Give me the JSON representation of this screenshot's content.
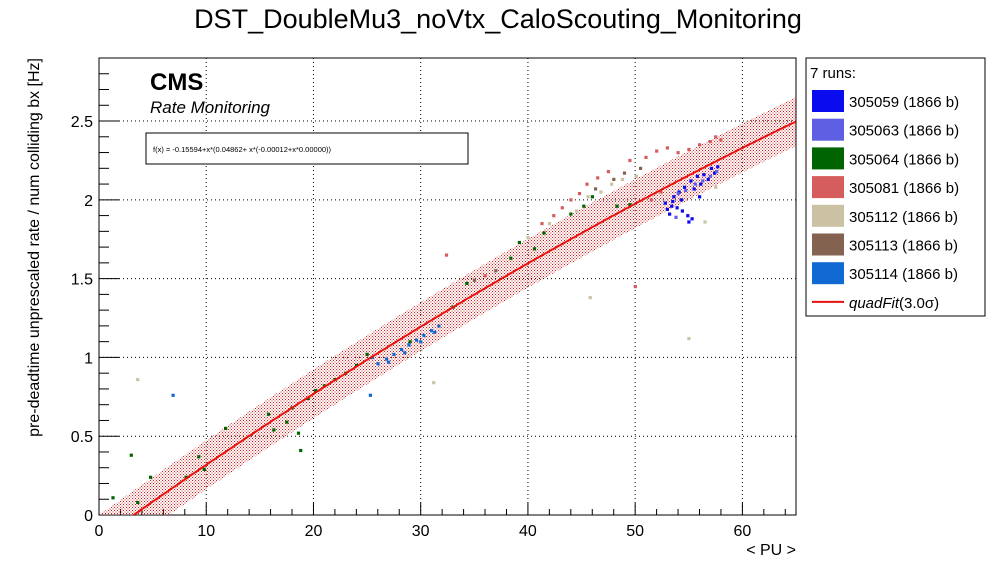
{
  "chart_data": {
    "type": "scatter",
    "title": "DST_DoubleMu3_noVtx_CaloScouting_Monitoring",
    "xlabel": "< PU >",
    "ylabel": "pre-deadtime unprescaled rate / num colliding bx [Hz]",
    "xlim": [
      0,
      65
    ],
    "ylim": [
      0,
      2.9
    ],
    "xticks": [
      "0",
      "10",
      "20",
      "30",
      "40",
      "50",
      "60"
    ],
    "yticks": [
      "0",
      "0.5",
      "1",
      "1.5",
      "2",
      "2.5"
    ],
    "grid": true,
    "cms_label": "CMS",
    "cms_sublabel": "Rate Monitoring",
    "fit_formula": "f(x) = -0.15594+x*(0.04862+ x*(-0.00012+x*0.00000))",
    "fit": {
      "name": "quadFit(3.0σ)",
      "a": -0.15594,
      "b": 0.04862,
      "c": -0.00012,
      "band": 0.155,
      "color": "#e8120e"
    },
    "legend_header": "7 runs:",
    "legend_position": "right",
    "series": [
      {
        "name": "305059 (1866 b)",
        "color": "#0b0bf0",
        "points": [
          [
            52.8,
            1.98
          ],
          [
            53.0,
            1.94
          ],
          [
            53.2,
            1.91
          ],
          [
            53.4,
            1.96
          ],
          [
            53.6,
            2.02
          ],
          [
            53.9,
            1.95
          ],
          [
            54.1,
            2.05
          ],
          [
            54.3,
            2.0
          ],
          [
            54.6,
            2.08
          ],
          [
            54.9,
            1.9
          ],
          [
            55.2,
            2.12
          ],
          [
            55.5,
            2.07
          ],
          [
            55.8,
            2.15
          ],
          [
            56.1,
            2.1
          ],
          [
            56.4,
            2.16
          ],
          [
            56.8,
            2.13
          ],
          [
            57.1,
            2.2
          ],
          [
            57.4,
            2.17
          ],
          [
            57.7,
            2.21
          ],
          [
            55.0,
            1.86
          ],
          [
            55.3,
            1.88
          ],
          [
            56.0,
            2.02
          ],
          [
            54.4,
            1.93
          ],
          [
            53.5,
            1.99
          ]
        ]
      },
      {
        "name": "305063 (1866 b)",
        "color": "#5f5fe3",
        "points": [
          [
            53.8,
            1.89
          ],
          [
            54.0,
            2.04
          ],
          [
            54.7,
            2.06
          ],
          [
            55.6,
            2.1
          ],
          [
            56.3,
            2.12
          ],
          [
            57.0,
            2.15
          ],
          [
            57.6,
            2.18
          ]
        ]
      },
      {
        "name": "305064 (1866 b)",
        "color": "#006400",
        "points": [
          [
            1.3,
            0.11
          ],
          [
            3.0,
            0.38
          ],
          [
            3.6,
            0.08
          ],
          [
            4.8,
            0.24
          ],
          [
            8.1,
            0.24
          ],
          [
            9.3,
            0.37
          ],
          [
            9.8,
            0.29
          ],
          [
            11.8,
            0.55
          ],
          [
            15.8,
            0.64
          ],
          [
            16.3,
            0.54
          ],
          [
            17.5,
            0.59
          ],
          [
            18.0,
            0.68
          ],
          [
            18.6,
            0.52
          ],
          [
            18.8,
            0.41
          ],
          [
            19.5,
            0.74
          ],
          [
            20.2,
            0.79
          ],
          [
            21.0,
            0.82
          ],
          [
            22.0,
            0.86
          ],
          [
            23.0,
            0.9
          ],
          [
            24.0,
            0.95
          ],
          [
            25.0,
            1.02
          ],
          [
            29.0,
            1.1
          ],
          [
            33.0,
            1.32
          ],
          [
            34.3,
            1.47
          ],
          [
            38.4,
            1.63
          ],
          [
            39.2,
            1.73
          ],
          [
            40.6,
            1.69
          ],
          [
            41.5,
            1.79
          ],
          [
            44.0,
            1.91
          ],
          [
            45.2,
            1.96
          ],
          [
            46.0,
            2.02
          ],
          [
            48.3,
            1.96
          ],
          [
            49.5,
            1.97
          ]
        ]
      },
      {
        "name": "305081 (1866 b)",
        "color": "#d65d5d",
        "points": [
          [
            32.4,
            1.65
          ],
          [
            36.0,
            1.52
          ],
          [
            41.3,
            1.85
          ],
          [
            42.4,
            1.9
          ],
          [
            43.2,
            1.95
          ],
          [
            44.0,
            2.0
          ],
          [
            44.8,
            2.04
          ],
          [
            45.5,
            2.1
          ],
          [
            46.5,
            2.14
          ],
          [
            47.5,
            2.18
          ],
          [
            49.5,
            2.25
          ],
          [
            50.0,
            1.45
          ],
          [
            51.0,
            2.27
          ],
          [
            52.0,
            2.31
          ],
          [
            53.0,
            2.33
          ],
          [
            54.0,
            2.3
          ],
          [
            55.0,
            2.32
          ],
          [
            56.0,
            2.35
          ],
          [
            57.0,
            2.37
          ],
          [
            57.5,
            2.4
          ],
          [
            58.0,
            2.38
          ],
          [
            51.5,
            2.0
          ],
          [
            52.4,
            2.05
          ]
        ]
      },
      {
        "name": "305112 (1866 b)",
        "color": "#cbc2a4",
        "points": [
          [
            3.6,
            0.86
          ],
          [
            31.2,
            0.84
          ],
          [
            45.8,
            1.38
          ],
          [
            40.0,
            1.76
          ],
          [
            42.0,
            1.85
          ],
          [
            44.5,
            1.93
          ],
          [
            45.6,
            2.02
          ],
          [
            46.8,
            2.05
          ],
          [
            47.8,
            2.1
          ],
          [
            48.8,
            2.13
          ],
          [
            50.1,
            2.15
          ],
          [
            55.0,
            1.12
          ],
          [
            56.5,
            1.86
          ],
          [
            57.5,
            2.08
          ]
        ]
      },
      {
        "name": "305113 (1866 b)",
        "color": "#83624f",
        "points": [
          [
            35.0,
            1.49
          ],
          [
            37.0,
            1.55
          ],
          [
            46.3,
            2.07
          ],
          [
            48.0,
            2.13
          ],
          [
            49.0,
            2.17
          ],
          [
            50.5,
            2.2
          ]
        ]
      },
      {
        "name": "305114 (1866 b)",
        "color": "#1169d3",
        "points": [
          [
            6.9,
            0.76
          ],
          [
            25.3,
            0.76
          ],
          [
            25.5,
            1.0
          ],
          [
            26.0,
            0.96
          ],
          [
            26.8,
            0.99
          ],
          [
            27.5,
            1.02
          ],
          [
            28.2,
            1.05
          ],
          [
            28.9,
            1.08
          ],
          [
            29.6,
            1.11
          ],
          [
            30.3,
            1.14
          ],
          [
            31.0,
            1.17
          ],
          [
            31.7,
            1.2
          ],
          [
            27.0,
            0.97
          ],
          [
            28.5,
            1.03
          ],
          [
            30.0,
            1.1
          ],
          [
            31.3,
            1.16
          ]
        ]
      }
    ]
  }
}
